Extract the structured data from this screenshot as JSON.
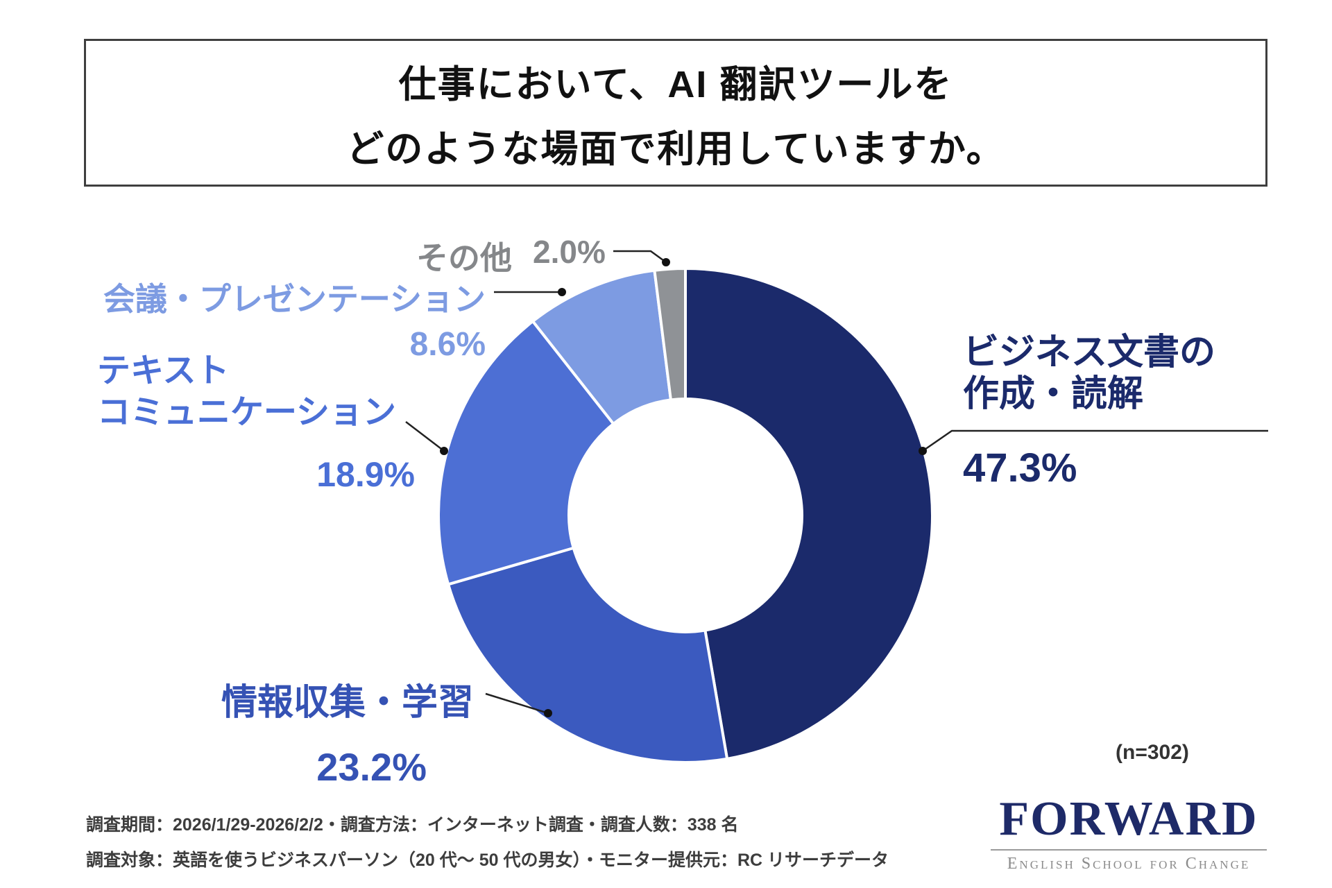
{
  "title": {
    "line1": "仕事において、AI 翻訳ツールを",
    "line2": "どのような場面で利用していますか。"
  },
  "chart_data": {
    "type": "pie",
    "donut": true,
    "title": "仕事において、AI 翻訳ツールをどのような場面で利用していますか。",
    "categories": [
      "ビジネス文書の作成・読解",
      "情報収集・学習",
      "テキストコミュニケーション",
      "会議・プレゼンテーション",
      "その他"
    ],
    "values": [
      47.3,
      23.2,
      18.9,
      8.6,
      2.0
    ],
    "colors": [
      "#1b2a6b",
      "#3b5abf",
      "#4d6fd4",
      "#7d9be2",
      "#8f9296"
    ],
    "start_angle": "top",
    "direction": "clockwise",
    "sample_note": "(n=302)"
  },
  "chart_labels": [
    {
      "lines": [
        "ビジネス文書の",
        "作成・読解"
      ],
      "pct": "47.3%"
    },
    {
      "lines": [
        "情報収集・学習"
      ],
      "pct": "23.2%"
    },
    {
      "lines": [
        "テキスト",
        "コミュニケーション"
      ],
      "pct": "18.9%"
    },
    {
      "lines": [
        "会議・プレゼンテーション"
      ],
      "pct": "8.6%"
    },
    {
      "lines": [
        "その他"
      ],
      "pct": "2.0%"
    }
  ],
  "footer": {
    "line1": "調査期間：2026/1/29-2026/2/2・調査方法：インターネット調査・調査人数：338 名",
    "line2": "調査対象：英語を使うビジネスパーソン（20 代～ 50 代の男女）・モニター提供元：RC リサーチデータ"
  },
  "logo": {
    "name": "FORWARD",
    "tagline": "English School for Change"
  }
}
